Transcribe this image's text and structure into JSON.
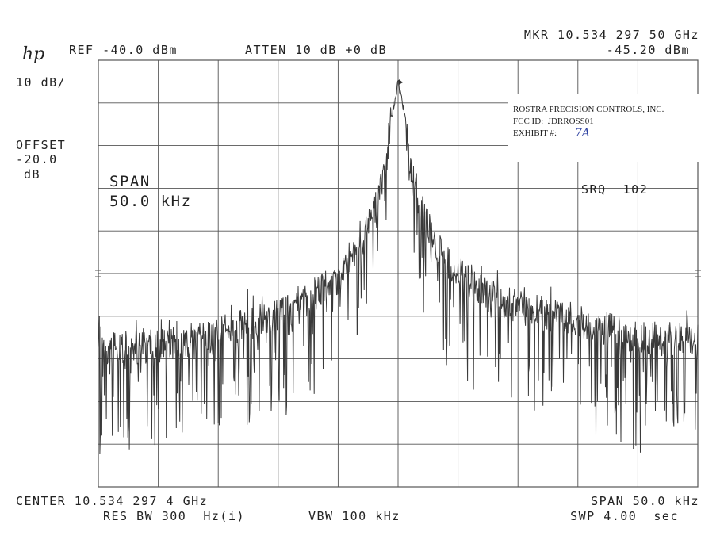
{
  "header": {
    "logo": "hp",
    "ref": "REF -40.0 dBm",
    "atten": "ATTEN 10 dB +0 dB",
    "marker_freq": "MKR 10.534 297 50 GHz",
    "marker_level": "-45.20 dBm"
  },
  "left_panel": {
    "scale": "10 dB/",
    "offset_label": "OFFSET",
    "offset_value": "-20.0",
    "offset_unit": "dB"
  },
  "overlay": {
    "span_label": "SPAN",
    "span_value": "50.0 kHz",
    "srq": "SRQ  102"
  },
  "exhibit": {
    "company": "ROSTRA PRECISION CONTROLS, INC.",
    "fcc_id": "FCC ID:  JDRROSS01",
    "exhibit_label": "EXHIBIT #:",
    "exhibit_number": "7A"
  },
  "footer": {
    "center": "CENTER 10.534 297 4 GHz",
    "span": "SPAN 50.0 kHz",
    "res_bw": "RES BW 300  Hz(i)",
    "vbw": "VBW 100 kHz",
    "sweep": "SWP 4.00  sec"
  },
  "chart_data": {
    "type": "line",
    "title": "",
    "xlabel": "",
    "ylabel": "",
    "xlim_khz_offset": [
      -25,
      25
    ],
    "ylim_dbm": [
      -140,
      -40
    ],
    "grid": true,
    "trace_color": "#3a3a3a",
    "grid_color": "#555555",
    "series": [
      {
        "x": [
          -25,
          -20,
          -15,
          -10,
          -7.5,
          -5,
          -3,
          -2,
          -1,
          -0.5,
          0,
          0.5,
          1,
          2,
          3,
          5,
          7.5,
          10,
          15,
          20,
          25
        ],
        "y": [
          -108,
          -107,
          -104,
          -100,
          -96,
          -91,
          -83,
          -75,
          -64,
          -52,
          -45,
          -52,
          -64,
          -75,
          -83,
          -90,
          -95,
          -98,
          -101,
          -105,
          -106
        ]
      }
    ]
  }
}
